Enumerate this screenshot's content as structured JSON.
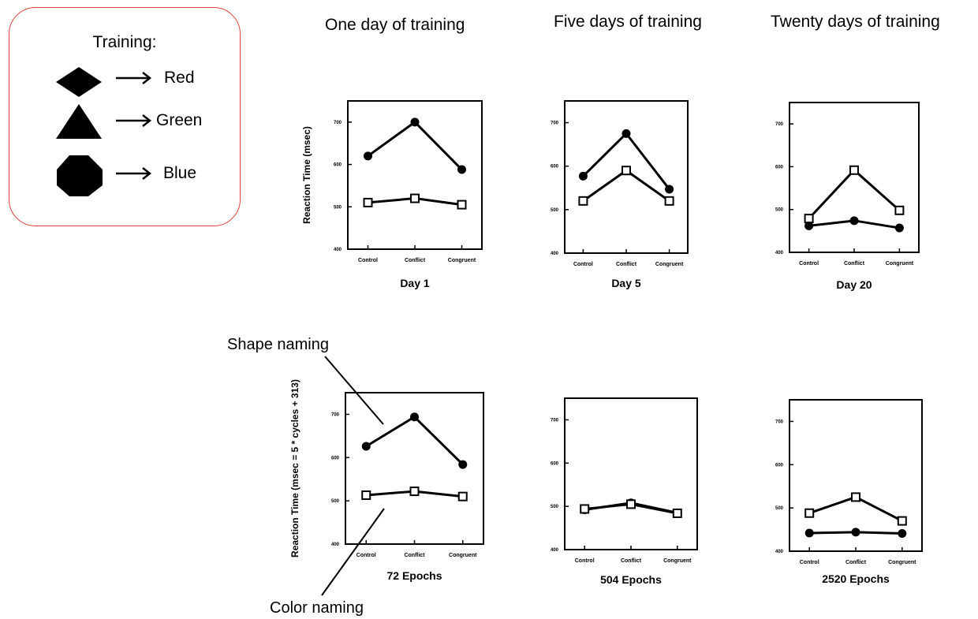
{
  "legend": {
    "title": "Training:",
    "items": [
      {
        "shape": "diamond-icon",
        "label": "Red"
      },
      {
        "shape": "triangle-icon",
        "label": "Green"
      },
      {
        "shape": "octagon-icon",
        "label": "Blue"
      }
    ],
    "border_color": "#e0403a"
  },
  "column_titles": [
    "One day of training",
    "Five days of training",
    "Twenty days of training"
  ],
  "annotations": {
    "shape_naming": "Shape naming",
    "color_naming": "Color naming"
  },
  "chart_data": [
    {
      "type": "line",
      "panel": "human-day-1",
      "xlabel": "Day 1",
      "ylabel": "Reaction Time (msec)",
      "categories": [
        "Control",
        "Conflict",
        "Congruent"
      ],
      "ylim": [
        400,
        750
      ],
      "series": [
        {
          "marker": "filled-circle",
          "values": [
            620,
            700,
            588
          ]
        },
        {
          "marker": "open-square",
          "values": [
            510,
            520,
            505
          ]
        }
      ]
    },
    {
      "type": "line",
      "panel": "human-day-5",
      "xlabel": "Day 5",
      "ylabel": "",
      "categories": [
        "Control",
        "Conflict",
        "Congruent"
      ],
      "ylim": [
        400,
        750
      ],
      "series": [
        {
          "marker": "filled-circle",
          "values": [
            577,
            675,
            547
          ]
        },
        {
          "marker": "open-square",
          "values": [
            520,
            590,
            520
          ]
        }
      ]
    },
    {
      "type": "line",
      "panel": "human-day-20",
      "xlabel": "Day 20",
      "ylabel": "",
      "categories": [
        "Control",
        "Conflict",
        "Congruent"
      ],
      "ylim": [
        400,
        750
      ],
      "series": [
        {
          "marker": "filled-circle",
          "values": [
            462,
            474,
            457
          ]
        },
        {
          "marker": "open-square",
          "values": [
            479,
            592,
            498
          ]
        }
      ]
    },
    {
      "type": "line",
      "panel": "model-72",
      "xlabel": "72 Epochs",
      "ylabel": "Reaction Time (msec = 5 * cycles + 313)",
      "categories": [
        "Control",
        "Conflict",
        "Congruent"
      ],
      "ylim": [
        400,
        750
      ],
      "series": [
        {
          "marker": "filled-circle",
          "values": [
            626,
            694,
            584
          ]
        },
        {
          "marker": "open-square",
          "values": [
            513,
            522,
            510
          ]
        }
      ]
    },
    {
      "type": "line",
      "panel": "model-504",
      "xlabel": "504 Epochs",
      "ylabel": "",
      "categories": [
        "Control",
        "Conflict",
        "Congruent"
      ],
      "ylim": [
        400,
        750
      ],
      "series": [
        {
          "marker": "filled-circle",
          "values": [
            492,
            508,
            485
          ]
        },
        {
          "marker": "open-square",
          "values": [
            494,
            505,
            484
          ]
        }
      ]
    },
    {
      "type": "line",
      "panel": "model-2520",
      "xlabel": "2520 Epochs",
      "ylabel": "",
      "categories": [
        "Control",
        "Conflict",
        "Congruent"
      ],
      "ylim": [
        400,
        750
      ],
      "series": [
        {
          "marker": "filled-circle",
          "values": [
            442,
            444,
            441
          ]
        },
        {
          "marker": "open-square",
          "values": [
            488,
            525,
            470
          ]
        }
      ]
    }
  ]
}
